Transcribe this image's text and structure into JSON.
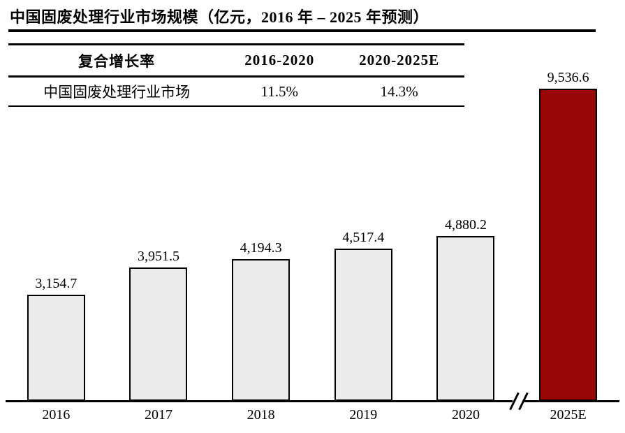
{
  "title": "中国固废处理行业市场规模（亿元，2016 年 – 2025 年预测）",
  "table": {
    "header": [
      "复合增长率",
      "2016-2020",
      "2020-2025E"
    ],
    "rows": [
      [
        "中国固废处理行业市场",
        "11.5%",
        "14.3%"
      ]
    ]
  },
  "chart_data": {
    "type": "bar",
    "title": "中国固废处理行业市场规模（亿元，2016 年 – 2025 年预测）",
    "categories": [
      "2016",
      "2017",
      "2018",
      "2019",
      "2020",
      "2025E"
    ],
    "values": [
      3154.7,
      3951.5,
      4194.3,
      4517.4,
      4880.2,
      9536.6
    ],
    "value_labels": [
      "3,154.7",
      "3,951.5",
      "4,194.3",
      "4,517.4",
      "4,880.2",
      "9,536.6"
    ],
    "unit": "亿元",
    "xlabel": "",
    "ylabel": "",
    "ylim": [
      0,
      9800
    ],
    "grid": false,
    "legend": "none",
    "axis_break_between": [
      "2020",
      "2025E"
    ],
    "bar_colors": [
      "#ebebeb",
      "#ebebeb",
      "#ebebeb",
      "#ebebeb",
      "#ebebeb",
      "#990606"
    ],
    "bar_border_color": "#000000",
    "highlight_color": "#990606",
    "base_bar_color": "#ebebeb"
  }
}
